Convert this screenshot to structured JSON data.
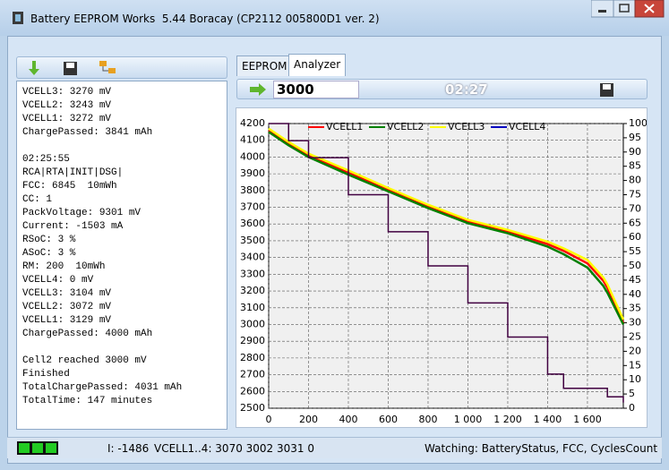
{
  "window": {
    "title": "Battery EEPROM Works  5.44 Boracay (CP2112 005800D1 ver. 2)"
  },
  "log": [
    [
      "VCELL3: 3270 mV",
      "VCELL2: 3243 mV",
      "VCELL1: 3272 mV",
      "ChargePassed: 3841 mAh"
    ],
    [
      "02:25:55",
      "RCA|RTA|INIT|DSG|",
      "FCC: 6845  10mWh",
      "CC: 1",
      "PackVoltage: 9301 mV",
      "Current: -1503 mA",
      "RSoC: 3 %",
      "ASoC: 3 %",
      "RM: 200  10mWh",
      "VCELL4: 0 mV",
      "VCELL3: 3104 mV",
      "VCELL2: 3072 mV",
      "VCELL1: 3129 mV",
      "ChargePassed: 4000 mAh"
    ],
    [
      "Cell2 reached 3000 mV",
      "Finished",
      "TotalChargePassed: 4031 mAh",
      "TotalTime: 147 minutes"
    ]
  ],
  "tabs": [
    "EEPROM",
    "Analyzer"
  ],
  "toolbar": {
    "target": "3000",
    "time": "02:27"
  },
  "status": {
    "current": "I: -1486",
    "cells": "VCELL1..4: 3070 3002 3031 0",
    "watching": "Watching: BatteryStatus, FCC, CyclesCount"
  },
  "chart_data": {
    "type": "line",
    "grid": true,
    "legend": "top",
    "x": [
      0,
      100,
      200,
      400,
      600,
      800,
      1000,
      1200,
      1400,
      1480,
      1600,
      1680,
      1700,
      1780
    ],
    "series": [
      {
        "name": "VCELL1",
        "color": "#ff0000",
        "values": [
          4160,
          4080,
          4010,
          3905,
          3805,
          3705,
          3615,
          3555,
          3480,
          3440,
          3365,
          3260,
          3220,
          3010
        ]
      },
      {
        "name": "VCELL2",
        "color": "#008000",
        "values": [
          4150,
          4070,
          4000,
          3895,
          3795,
          3695,
          3605,
          3545,
          3465,
          3420,
          3340,
          3230,
          3190,
          3000
        ]
      },
      {
        "name": "VCELL3",
        "color": "#ffff00",
        "values": [
          4170,
          4090,
          4020,
          3920,
          3815,
          3715,
          3625,
          3565,
          3495,
          3455,
          3385,
          3280,
          3240,
          3030
        ]
      },
      {
        "name": "VCELL4",
        "color": "#0000c0",
        "values": [
          null,
          null,
          null,
          null,
          null,
          null,
          null,
          null,
          null,
          null,
          null,
          null,
          null,
          null
        ]
      },
      {
        "color": "#400040",
        "axis": "y2",
        "step": true,
        "values": [
          100,
          94,
          88,
          75,
          62,
          50,
          37,
          25,
          12,
          7,
          7,
          7,
          4,
          2
        ]
      }
    ],
    "xlim": [
      0,
      1780
    ],
    "xticks": [
      0,
      200,
      400,
      600,
      800,
      {
        "value": 1000,
        "label": "1 000"
      },
      {
        "value": 1200,
        "label": "1 200"
      },
      {
        "value": 1400,
        "label": "1 400"
      },
      {
        "value": 1600,
        "label": "1 600"
      }
    ],
    "ylim": [
      2500,
      4200
    ],
    "yticks": [
      2500,
      2600,
      2700,
      2800,
      2900,
      3000,
      3100,
      3200,
      3300,
      3400,
      3500,
      3600,
      3700,
      3800,
      3900,
      4000,
      4100,
      4200
    ],
    "y2lim": [
      0,
      100
    ],
    "y2ticks": [
      0,
      5,
      10,
      15,
      20,
      25,
      30,
      35,
      40,
      45,
      50,
      55,
      60,
      65,
      70,
      75,
      80,
      85,
      90,
      95,
      100
    ]
  }
}
